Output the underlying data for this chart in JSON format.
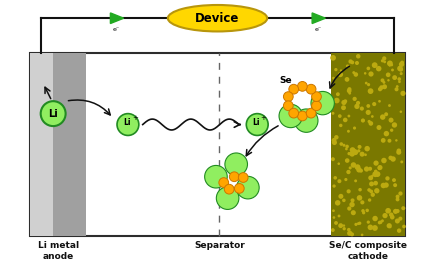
{
  "fig_width": 4.35,
  "fig_height": 2.74,
  "dpi": 100,
  "bg_color": "#ffffff",
  "border_color": "#2d2d2d",
  "anode_dark": "#a0a0a0",
  "anode_light": "#d0d0d0",
  "cathode_bg": "#7a7800",
  "cathode_dot": "#bcaa10",
  "separator_color": "#666666",
  "li_fill": "#90ee60",
  "li_edge": "#228B22",
  "orange_fill": "#FFA500",
  "orange_edge": "#cc7700",
  "green_fill": "#90ee60",
  "green_edge": "#228B22",
  "device_fill": "#FFD700",
  "device_edge": "#b8960c",
  "triangle_fill": "#22aa22",
  "wire_color": "#111111",
  "arrow_color": "#111111",
  "text_color": "#111111",
  "label_anode": "Li metal\nanode",
  "label_separator": "Separator",
  "label_cathode": "Se/C composite\ncathode",
  "label_device": "Device",
  "label_li": "Li",
  "label_se": "Se"
}
